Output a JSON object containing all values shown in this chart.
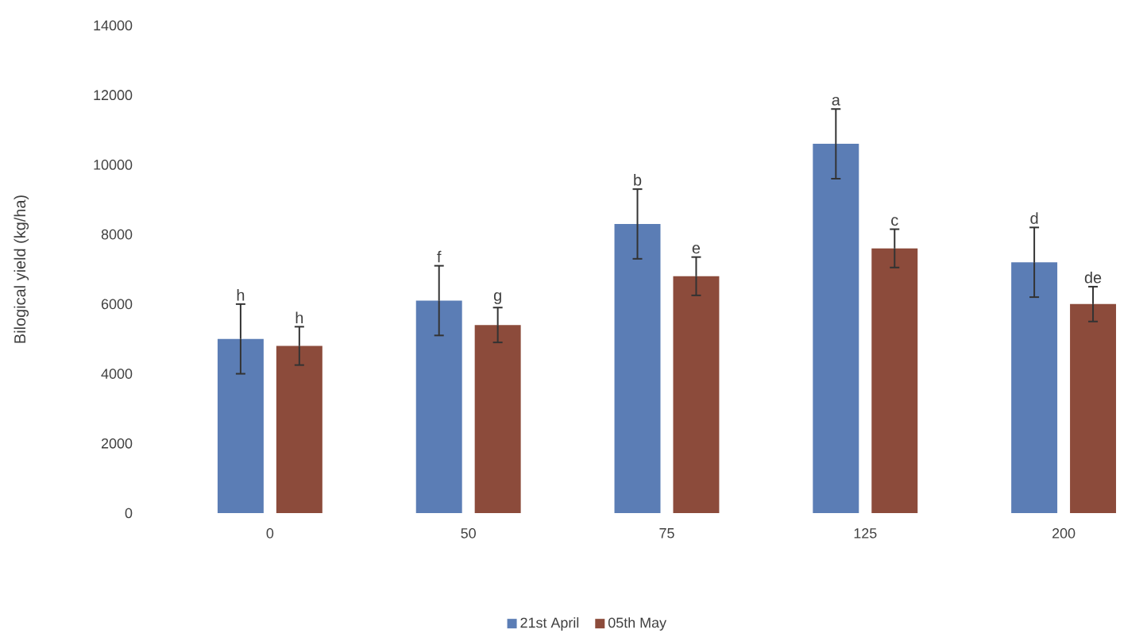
{
  "chart_data": {
    "type": "bar",
    "ylabel": "Bilogical yield (kg/ha)",
    "categories": [
      "0",
      "50",
      "75",
      "125",
      "200"
    ],
    "series": [
      {
        "name": "21st April",
        "color": "#5b7db5",
        "values": [
          5000,
          6100,
          8300,
          10600,
          7200
        ],
        "errors": [
          1000,
          1000,
          1000,
          1000,
          1000
        ]
      },
      {
        "name": "05th May",
        "color": "#8c4b3b",
        "values": [
          4800,
          5400,
          6800,
          7600,
          6000
        ],
        "errors": [
          550,
          500,
          550,
          550,
          500
        ]
      }
    ],
    "ylim": [
      0,
      14000
    ],
    "yticks": [
      0,
      2000,
      4000,
      6000,
      8000,
      10000,
      12000,
      14000
    ],
    "legend": "bottom",
    "grid": false,
    "annotations": [
      "h",
      "h",
      "f",
      "g",
      "b",
      "e",
      "a",
      "c",
      "d",
      "de"
    ]
  }
}
